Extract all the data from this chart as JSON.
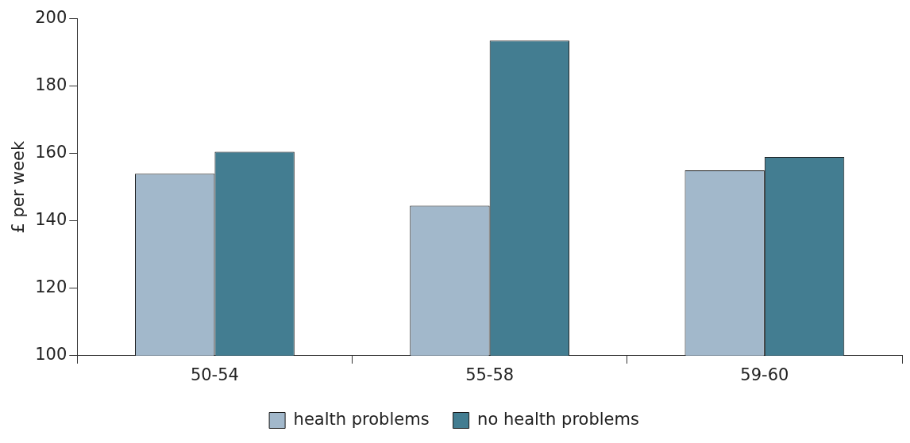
{
  "chart_data": {
    "type": "bar",
    "ylabel": "£ per week",
    "categories": [
      "50-54",
      "55-58",
      "59-60"
    ],
    "series": [
      {
        "name": "health problems",
        "color": "#a2b8cb",
        "values": [
          154,
          144.5,
          155
        ]
      },
      {
        "name": "no health problems",
        "color": "#437d91",
        "values": [
          160.5,
          193.5,
          159
        ]
      }
    ],
    "ylim": [
      100,
      200
    ],
    "yticks": [
      100,
      120,
      140,
      160,
      180,
      200
    ],
    "grid": false,
    "legend": "bottom"
  }
}
